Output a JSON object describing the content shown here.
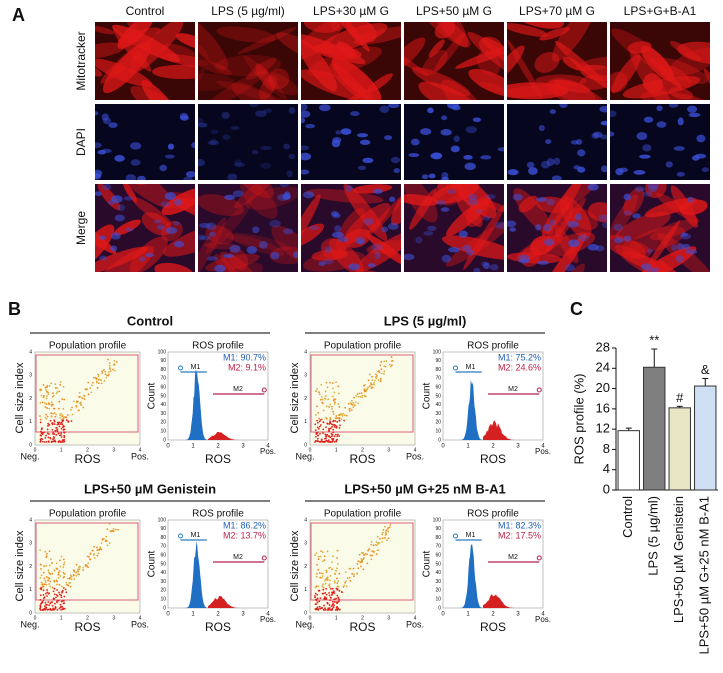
{
  "panel_a": {
    "label": "A",
    "columns": [
      "Control",
      "LPS (5 µg/ml)",
      "LPS+30 µM G",
      "LPS+50 µM G",
      "LPS+70 µM G",
      "LPS+G+B-A1"
    ],
    "rows": [
      "Mitotracker",
      "DAPI",
      "Merge"
    ]
  },
  "panel_b": {
    "label": "B",
    "population_label": "Population profile",
    "ros_label": "ROS profile",
    "y_label": "Cell size index",
    "x_label": "ROS",
    "neg": "Neg.",
    "pos": "Pos.",
    "count_label": "Count",
    "marker1": "M1",
    "marker2": "M2",
    "x_ticks": [
      0,
      1,
      2,
      3,
      4
    ],
    "count_ticks": [
      0,
      10,
      20,
      30,
      40,
      50,
      60,
      70,
      80,
      90,
      100
    ],
    "groups": [
      {
        "title": "Control",
        "m1": "M1: 90.7%",
        "m2": "M2:  9.1%"
      },
      {
        "title": "LPS (5 µg/ml)",
        "m1": "M1: 75.2%",
        "m2": "M2: 24.6%"
      },
      {
        "title": "LPS+50 µM Genistein",
        "m1": "M1: 86.2%",
        "m2": "M2: 13.7%"
      },
      {
        "title": "LPS+50 µM G+25 nM B-A1",
        "m1": "M1: 82.3%",
        "m2": "M2: 17.5%"
      }
    ]
  },
  "chart_data": {
    "type": "bar",
    "panel_label": "C",
    "ylabel": "ROS profile (%)",
    "categories": [
      "Control",
      "LPS (5 µg/ml)",
      "LPS+50 µM Genistein",
      "LPS+50 µM G+25 nM B-A1"
    ],
    "values": [
      11.7,
      24.2,
      16.2,
      20.5
    ],
    "errors": [
      0.5,
      3.6,
      0.3,
      1.5
    ],
    "annotations": [
      null,
      "**",
      "#",
      "&"
    ],
    "colors": [
      "#ffffff",
      "#7f7f7f",
      "#e9e6c6",
      "#cfe0f5"
    ],
    "ylim": [
      0,
      28
    ],
    "yticks": [
      0,
      4,
      8,
      12,
      16,
      20,
      24,
      28
    ]
  }
}
